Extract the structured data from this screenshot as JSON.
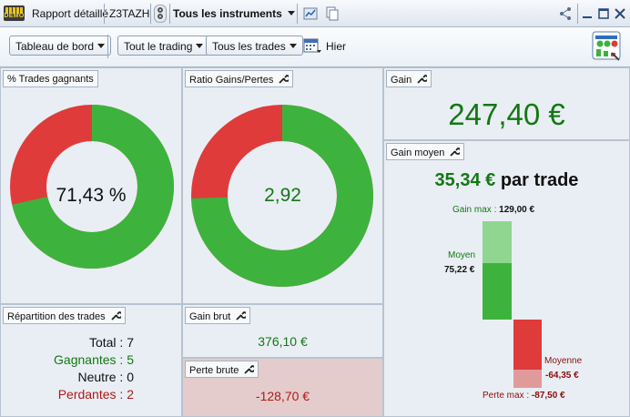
{
  "titlebar": {
    "demo_badge": "DEMO",
    "tab_report": "Rapport détaillé",
    "account": "Z3TAZH",
    "instruments": "Tous les instruments"
  },
  "toolbar": {
    "dashboard": "Tableau de bord",
    "trading": "Tout le trading",
    "trades": "Tous les trades",
    "date": "Hier"
  },
  "panels": {
    "win_rate": {
      "title": "% Trades gagnants",
      "value": "71,43 %",
      "fraction": 0.7143
    },
    "ratio": {
      "title": "Ratio Gains/Pertes",
      "value": "2,92",
      "fraction": 0.745
    },
    "gain": {
      "title": "Gain",
      "value": "247,40 €"
    },
    "avg_gain": {
      "title": "Gain moyen",
      "value": "35,34 €",
      "suffix": "par trade",
      "max_label": "Gain max :",
      "max_value": "129,00 €",
      "avg_pos_label": "Moyen",
      "avg_pos_value": "75,22 €",
      "avg_neg_label": "Moyenne",
      "avg_neg_value": "-64,35 €",
      "min_label": "Perte max :",
      "min_value": "-87,50 €"
    },
    "breakdown": {
      "title": "Répartition des trades",
      "total_label": "Total :",
      "total": "7",
      "win_label": "Gagnantes :",
      "win": "5",
      "neutral_label": "Neutre :",
      "neutral": "0",
      "loss_label": "Perdantes :",
      "loss": "2"
    },
    "gross_gain": {
      "title": "Gain brut",
      "value": "376,10 €"
    },
    "gross_loss": {
      "title": "Perte brute",
      "value": "-128,70 €"
    }
  },
  "colors": {
    "green": "#3db33d",
    "red": "#df3b3b",
    "light_green": "#90d690",
    "light_red": "#e19a9a"
  }
}
